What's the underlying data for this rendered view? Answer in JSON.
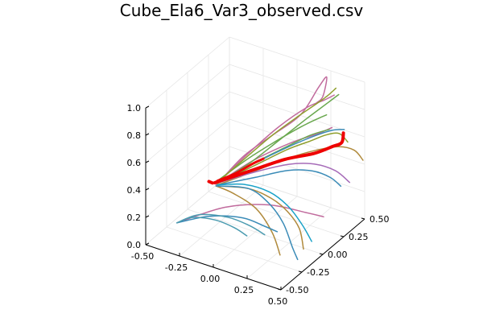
{
  "chart_data": {
    "type": "line",
    "title": "Cube_Ela6_Var3_observed.csv",
    "projection": "3d",
    "grid": true,
    "legend": "none",
    "x_ticks": [
      "-0.50",
      "-0.25",
      "0.00",
      "0.25",
      "0.50"
    ],
    "y_ticks": [
      "-0.50",
      "-0.25",
      "0.00",
      "0.25",
      "0.50"
    ],
    "z_ticks": [
      "0.0",
      "0.2",
      "0.4",
      "0.6",
      "0.8",
      "1.0"
    ],
    "xlim": [
      -0.5,
      0.5
    ],
    "ylim": [
      -0.5,
      0.5
    ],
    "zlim": [
      0.0,
      1.0
    ],
    "series": [
      {
        "color": "#c16b9d",
        "width": 1.5,
        "points": [
          [
            -0.27,
            0.0,
            0.27
          ],
          [
            -0.15,
            0.1,
            0.45
          ],
          [
            0.0,
            0.2,
            0.6
          ],
          [
            0.15,
            0.3,
            0.75
          ],
          [
            0.22,
            0.4,
            0.92
          ],
          [
            0.25,
            0.45,
            0.98
          ],
          [
            0.24,
            0.42,
            0.85
          ],
          [
            0.22,
            0.38,
            0.82
          ]
        ]
      },
      {
        "color": "#c16b9d",
        "width": 1.5,
        "points": [
          [
            -0.25,
            0.0,
            0.3
          ],
          [
            -0.1,
            0.1,
            0.5
          ],
          [
            0.05,
            0.2,
            0.68
          ],
          [
            0.18,
            0.32,
            0.8
          ],
          [
            0.26,
            0.4,
            0.84
          ],
          [
            0.3,
            0.46,
            0.86
          ]
        ]
      },
      {
        "color": "#c16b9d",
        "width": 1.5,
        "points": [
          [
            -0.29,
            0.0,
            0.25
          ],
          [
            -0.1,
            0.12,
            0.42
          ],
          [
            0.1,
            0.25,
            0.55
          ],
          [
            0.25,
            0.35,
            0.62
          ],
          [
            0.32,
            0.4,
            0.66
          ]
        ]
      },
      {
        "color": "#c16b9d",
        "width": 1.5,
        "points": [
          [
            -0.3,
            -0.45,
            0.2
          ],
          [
            -0.1,
            -0.2,
            0.25
          ],
          [
            0.1,
            0.0,
            0.23
          ],
          [
            0.25,
            0.2,
            0.12
          ],
          [
            0.32,
            0.3,
            0.06
          ]
        ]
      },
      {
        "color": "#6aa84f",
        "width": 1.5,
        "points": [
          [
            -0.27,
            0.0,
            0.27
          ],
          [
            -0.1,
            0.1,
            0.42
          ],
          [
            0.05,
            0.2,
            0.58
          ],
          [
            0.18,
            0.3,
            0.72
          ],
          [
            0.28,
            0.42,
            0.82
          ],
          [
            0.32,
            0.48,
            0.86
          ]
        ]
      },
      {
        "color": "#6aa84f",
        "width": 1.5,
        "points": [
          [
            -0.28,
            0.0,
            0.28
          ],
          [
            -0.12,
            0.1,
            0.44
          ],
          [
            0.02,
            0.2,
            0.56
          ],
          [
            0.15,
            0.3,
            0.66
          ],
          [
            0.24,
            0.36,
            0.72
          ],
          [
            0.28,
            0.4,
            0.74
          ]
        ]
      },
      {
        "color": "#6aa84f",
        "width": 1.5,
        "points": [
          [
            -0.28,
            0.0,
            0.26
          ],
          [
            -0.1,
            0.12,
            0.4
          ],
          [
            0.08,
            0.25,
            0.52
          ],
          [
            0.2,
            0.33,
            0.6
          ],
          [
            0.3,
            0.4,
            0.64
          ]
        ]
      },
      {
        "color": "#8f9f2c",
        "width": 1.5,
        "points": [
          [
            -0.27,
            0.0,
            0.28
          ],
          [
            -0.12,
            0.1,
            0.46
          ],
          [
            0.0,
            0.2,
            0.6
          ],
          [
            0.12,
            0.3,
            0.72
          ],
          [
            0.25,
            0.42,
            0.84
          ],
          [
            0.3,
            0.48,
            0.9
          ]
        ]
      },
      {
        "color": "#8f9f2c",
        "width": 1.5,
        "points": [
          [
            -0.28,
            0.0,
            0.26
          ],
          [
            -0.08,
            0.1,
            0.4
          ],
          [
            0.1,
            0.22,
            0.52
          ],
          [
            0.22,
            0.3,
            0.58
          ],
          [
            0.3,
            0.36,
            0.62
          ],
          [
            0.36,
            0.42,
            0.62
          ],
          [
            0.4,
            0.46,
            0.55
          ]
        ]
      },
      {
        "color": "#b08a3c",
        "width": 1.5,
        "points": [
          [
            -0.28,
            0.0,
            0.25
          ],
          [
            -0.08,
            0.1,
            0.36
          ],
          [
            0.1,
            0.2,
            0.46
          ],
          [
            0.25,
            0.3,
            0.52
          ],
          [
            0.38,
            0.38,
            0.55
          ],
          [
            0.46,
            0.44,
            0.52
          ],
          [
            0.5,
            0.48,
            0.44
          ]
        ]
      },
      {
        "color": "#b08a3c",
        "width": 1.5,
        "points": [
          [
            -0.29,
            0.0,
            0.24
          ],
          [
            -0.05,
            0.0,
            0.3
          ],
          [
            0.15,
            -0.05,
            0.32
          ],
          [
            0.3,
            -0.1,
            0.3
          ],
          [
            0.4,
            -0.12,
            0.22
          ],
          [
            0.45,
            -0.15,
            0.1
          ]
        ]
      },
      {
        "color": "#b08a3c",
        "width": 1.5,
        "points": [
          [
            -0.29,
            0.0,
            0.24
          ],
          [
            -0.1,
            -0.1,
            0.3
          ],
          [
            0.1,
            -0.15,
            0.28
          ],
          [
            0.25,
            -0.2,
            0.18
          ],
          [
            0.32,
            -0.22,
            0.05
          ]
        ]
      },
      {
        "color": "#3a8bb7",
        "width": 1.5,
        "points": [
          [
            -0.27,
            0.0,
            0.27
          ],
          [
            -0.1,
            0.1,
            0.4
          ],
          [
            0.08,
            0.22,
            0.52
          ],
          [
            0.22,
            0.32,
            0.6
          ],
          [
            0.32,
            0.4,
            0.64
          ],
          [
            0.38,
            0.45,
            0.64
          ]
        ]
      },
      {
        "color": "#3a8bb7",
        "width": 1.5,
        "points": [
          [
            -0.28,
            0.0,
            0.25
          ],
          [
            -0.05,
            0.08,
            0.34
          ],
          [
            0.15,
            0.15,
            0.42
          ],
          [
            0.3,
            0.2,
            0.44
          ],
          [
            0.4,
            0.25,
            0.4
          ],
          [
            0.46,
            0.28,
            0.34
          ]
        ]
      },
      {
        "color": "#3a8bb7",
        "width": 1.5,
        "points": [
          [
            -0.29,
            0.0,
            0.24
          ],
          [
            -0.05,
            0.0,
            0.3
          ],
          [
            0.15,
            -0.08,
            0.3
          ],
          [
            0.3,
            -0.15,
            0.24
          ],
          [
            0.4,
            -0.2,
            0.12
          ],
          [
            0.45,
            -0.22,
            0.06
          ]
        ]
      },
      {
        "color": "#3a8bb7",
        "width": 1.5,
        "points": [
          [
            -0.3,
            -0.45,
            0.2
          ],
          [
            -0.15,
            -0.3,
            0.22
          ],
          [
            0.0,
            -0.15,
            0.18
          ],
          [
            0.1,
            -0.05,
            0.1
          ],
          [
            0.15,
            0.02,
            0.04
          ]
        ]
      },
      {
        "color": "#4b9bb0",
        "width": 1.5,
        "points": [
          [
            -0.3,
            -0.45,
            0.2
          ],
          [
            -0.2,
            -0.35,
            0.24
          ],
          [
            -0.05,
            -0.25,
            0.22
          ],
          [
            0.05,
            -0.15,
            0.14
          ],
          [
            0.12,
            -0.08,
            0.06
          ]
        ]
      },
      {
        "color": "#4b9bb0",
        "width": 1.5,
        "points": [
          [
            -0.3,
            -0.45,
            0.2
          ],
          [
            -0.22,
            -0.4,
            0.24
          ],
          [
            -0.1,
            -0.32,
            0.22
          ],
          [
            0.0,
            -0.25,
            0.16
          ],
          [
            0.05,
            -0.18,
            0.08
          ]
        ]
      },
      {
        "color": "#1aa2c8",
        "width": 1.5,
        "points": [
          [
            -0.28,
            0.0,
            0.25
          ],
          [
            -0.08,
            0.0,
            0.32
          ],
          [
            0.12,
            -0.02,
            0.34
          ],
          [
            0.28,
            -0.05,
            0.3
          ],
          [
            0.4,
            -0.08,
            0.22
          ],
          [
            0.48,
            -0.1,
            0.14
          ]
        ]
      },
      {
        "color": "#a66bb8",
        "width": 1.5,
        "points": [
          [
            -0.27,
            0.0,
            0.27
          ],
          [
            -0.05,
            0.08,
            0.38
          ],
          [
            0.15,
            0.16,
            0.46
          ],
          [
            0.3,
            0.22,
            0.48
          ],
          [
            0.42,
            0.28,
            0.44
          ],
          [
            0.5,
            0.32,
            0.36
          ]
        ]
      },
      {
        "color": "#ee0000",
        "width": 4,
        "points": [
          [
            -0.3,
            0.0,
            0.26
          ],
          [
            -0.1,
            0.1,
            0.36
          ],
          [
            0.1,
            0.2,
            0.46
          ],
          [
            0.25,
            0.3,
            0.5
          ],
          [
            0.34,
            0.38,
            0.54
          ],
          [
            0.38,
            0.42,
            0.56
          ],
          [
            0.38,
            0.44,
            0.62
          ]
        ]
      },
      {
        "color": "#ee0000",
        "width": 4,
        "points": [
          [
            -0.33,
            -0.02,
            0.27
          ],
          [
            -0.31,
            -0.01,
            0.26
          ]
        ]
      },
      {
        "color": "#ee0000",
        "width": 3,
        "points": [
          [
            -0.28,
            0.0,
            0.28
          ],
          [
            -0.18,
            0.05,
            0.34
          ],
          [
            -0.08,
            0.1,
            0.42
          ],
          [
            -0.02,
            0.13,
            0.46
          ]
        ]
      }
    ]
  }
}
